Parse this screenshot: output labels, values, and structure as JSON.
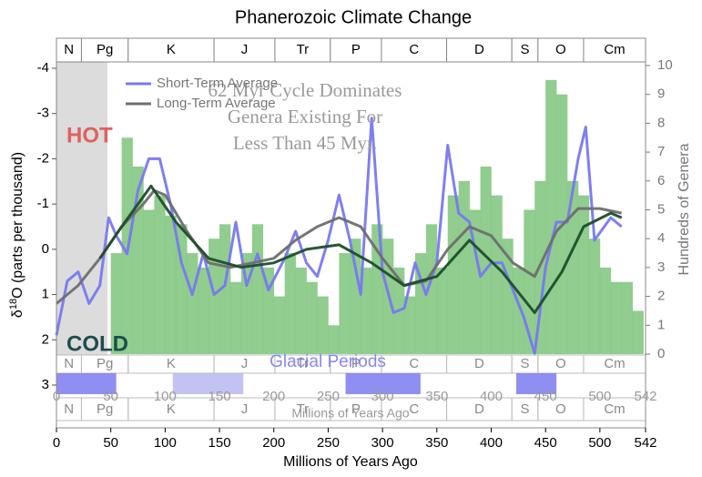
{
  "chart_data": [
    {
      "type": "line",
      "title": "Phanerozoic Climate Change",
      "xlabel": "Millions of Years Ago",
      "ylabel_parts": [
        "δ",
        "18",
        "O (parts per thousand)"
      ],
      "xlim": [
        0,
        542
      ],
      "xticks": [
        0,
        50,
        100,
        150,
        200,
        250,
        300,
        350,
        400,
        450,
        500,
        542
      ],
      "ylim": [
        3,
        -4
      ],
      "yticks": [
        -4,
        -3,
        -2,
        -1,
        0,
        1,
        2,
        3
      ],
      "shaded_range": [
        0,
        47
      ],
      "periods": [
        {
          "label": "N",
          "start": 0,
          "end": 23
        },
        {
          "label": "Pg",
          "start": 23,
          "end": 66
        },
        {
          "label": "K",
          "start": 66,
          "end": 145
        },
        {
          "label": "J",
          "start": 145,
          "end": 201
        },
        {
          "label": "Tr",
          "start": 201,
          "end": 252
        },
        {
          "label": "P",
          "start": 252,
          "end": 299
        },
        {
          "label": "C",
          "start": 299,
          "end": 359
        },
        {
          "label": "D",
          "start": 359,
          "end": 419
        },
        {
          "label": "S",
          "start": 419,
          "end": 443
        },
        {
          "label": "O",
          "start": 443,
          "end": 485
        },
        {
          "label": "Cm",
          "start": 485,
          "end": 542
        }
      ],
      "glacial_label": "Glacial Periods",
      "glacial_periods": [
        {
          "start": 0,
          "end": 55,
          "color": "#7b7bf0"
        },
        {
          "start": 107,
          "end": 172,
          "color": "#b9b9f0"
        },
        {
          "start": 266,
          "end": 335,
          "color": "#7b7bf0"
        },
        {
          "start": 423,
          "end": 460,
          "color": "#7b7bf0"
        }
      ],
      "annotations": [
        "62 Myr Cycle Dominates",
        "Genera Existing For",
        "Less Than 45 Myr."
      ],
      "hot_label": "HOT",
      "cold_label": "COLD",
      "series": [
        {
          "name": "Short-Term Average",
          "color": "#7878f0",
          "x": [
            0,
            10,
            20,
            30,
            40,
            48,
            55,
            65,
            75,
            85,
            95,
            105,
            115,
            125,
            135,
            145,
            155,
            165,
            175,
            185,
            195,
            210,
            220,
            230,
            240,
            250,
            260,
            270,
            280,
            290,
            300,
            310,
            320,
            330,
            340,
            350,
            360,
            370,
            380,
            390,
            400,
            410,
            420,
            430,
            440,
            450,
            460,
            470,
            480,
            487,
            495,
            510,
            520
          ],
          "values": [
            1.9,
            0.7,
            0.5,
            1.2,
            0.8,
            -0.7,
            -0.3,
            0.1,
            -1.3,
            -2.0,
            -2.0,
            -1.0,
            0.3,
            1.0,
            0.1,
            1.0,
            0.8,
            -0.6,
            0.8,
            0.1,
            0.9,
            0.2,
            -0.4,
            0.3,
            0.6,
            -0.2,
            -1.2,
            -0.2,
            1.0,
            -2.9,
            0.5,
            1.4,
            1.3,
            0.3,
            1.0,
            0.3,
            -2.3,
            -0.8,
            -0.6,
            0.6,
            0.3,
            0.3,
            0.9,
            1.5,
            2.3,
            0.4,
            -0.6,
            -0.6,
            -2.0,
            -2.7,
            -0.2,
            -0.7,
            -0.5
          ]
        },
        {
          "name": "Long-Term Average",
          "color": "#6e6e6e",
          "x": [
            0,
            20,
            40,
            60,
            80,
            90,
            100,
            120,
            140,
            160,
            180,
            200,
            220,
            240,
            260,
            280,
            300,
            320,
            340,
            360,
            380,
            400,
            420,
            440,
            460,
            480,
            500,
            520
          ],
          "values": [
            1.2,
            0.8,
            0.2,
            -0.5,
            -1.0,
            -1.3,
            -1.2,
            -0.4,
            0.3,
            0.4,
            0.3,
            0.2,
            -0.2,
            -0.5,
            -0.7,
            -0.5,
            0.2,
            0.8,
            0.7,
            0.0,
            -0.5,
            -0.3,
            0.3,
            0.6,
            -0.4,
            -0.9,
            -0.9,
            -0.8
          ]
        },
        {
          "color": "#1e4d2b",
          "x": [
            40,
            60,
            87,
            110,
            140,
            170,
            200,
            230,
            260,
            290,
            320,
            350,
            380,
            410,
            440,
            465,
            485,
            510,
            520
          ],
          "values": [
            0.2,
            -0.5,
            -1.4,
            -0.6,
            0.2,
            0.4,
            0.3,
            0.0,
            -0.1,
            0.3,
            0.8,
            0.6,
            -0.2,
            0.5,
            1.4,
            0.5,
            -0.5,
            -0.8,
            -0.7
          ]
        }
      ]
    },
    {
      "type": "histogram",
      "y2label": "Hundreds of Genera",
      "y2lim": [
        0,
        10
      ],
      "y2ticks": [
        0,
        1,
        2,
        3,
        4,
        5,
        6,
        7,
        8,
        9,
        10
      ],
      "color": "#7cc47a",
      "bins": [
        50,
        60,
        70,
        80,
        90,
        100,
        110,
        120,
        130,
        140,
        150,
        160,
        170,
        180,
        190,
        200,
        210,
        220,
        230,
        240,
        250,
        260,
        270,
        280,
        290,
        300,
        310,
        320,
        330,
        340,
        350,
        360,
        370,
        380,
        390,
        400,
        410,
        420,
        430,
        440,
        450,
        460,
        470,
        480,
        490,
        500,
        510,
        520,
        530,
        540
      ],
      "values": [
        3.5,
        7.5,
        6.5,
        5,
        5.5,
        4.8,
        4.5,
        3.5,
        3.0,
        4.0,
        4.5,
        2.5,
        3.5,
        4.5,
        3.0,
        2.0,
        3.5,
        3.0,
        2.5,
        2.0,
        1.0,
        3.5,
        4.0,
        3.0,
        4.5,
        4.0,
        3.0,
        2.0,
        3.5,
        4.5,
        3.0,
        5.5,
        6.0,
        5.0,
        6.5,
        5.5,
        4.0,
        3.0,
        5.0,
        6.0,
        9.5,
        9.0,
        6.0,
        5.5,
        4.0,
        3.0,
        2.5,
        2.5,
        1.5
      ]
    }
  ]
}
